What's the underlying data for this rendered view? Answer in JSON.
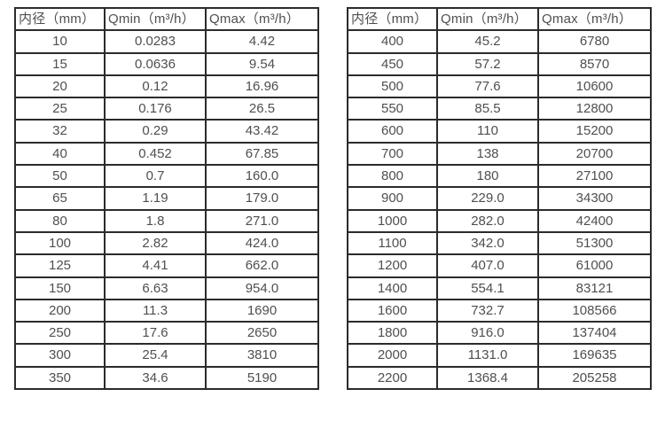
{
  "colors": {
    "background": "#ffffff",
    "border": "#2b2b2b",
    "text": "#4f4f4f"
  },
  "tables": [
    {
      "headers": [
        "内径（mm）",
        "Qmin（m³/h）",
        "Qmax（m³/h）"
      ],
      "rows": [
        [
          "10",
          "0.0283",
          "4.42"
        ],
        [
          "15",
          "0.0636",
          "9.54"
        ],
        [
          "20",
          "0.12",
          "16.96"
        ],
        [
          "25",
          "0.176",
          "26.5"
        ],
        [
          "32",
          "0.29",
          "43.42"
        ],
        [
          "40",
          "0.452",
          "67.85"
        ],
        [
          "50",
          "0.7",
          "160.0"
        ],
        [
          "65",
          "1.19",
          "179.0"
        ],
        [
          "80",
          "1.8",
          "271.0"
        ],
        [
          "100",
          "2.82",
          "424.0"
        ],
        [
          "125",
          "4.41",
          "662.0"
        ],
        [
          "150",
          "6.63",
          "954.0"
        ],
        [
          "200",
          "11.3",
          "1690"
        ],
        [
          "250",
          "17.6",
          "2650"
        ],
        [
          "300",
          "25.4",
          "3810"
        ],
        [
          "350",
          "34.6",
          "5190"
        ]
      ]
    },
    {
      "headers": [
        "内径（mm）",
        "Qmin（m³/h）",
        "Qmax（m³/h）"
      ],
      "rows": [
        [
          "400",
          "45.2",
          "6780"
        ],
        [
          "450",
          "57.2",
          "8570"
        ],
        [
          "500",
          "77.6",
          "10600"
        ],
        [
          "550",
          "85.5",
          "12800"
        ],
        [
          "600",
          "110",
          "15200"
        ],
        [
          "700",
          "138",
          "20700"
        ],
        [
          "800",
          "180",
          "27100"
        ],
        [
          "900",
          "229.0",
          "34300"
        ],
        [
          "1000",
          "282.0",
          "42400"
        ],
        [
          "1100",
          "342.0",
          "51300"
        ],
        [
          "1200",
          "407.0",
          "61000"
        ],
        [
          "1400",
          "554.1",
          "83121"
        ],
        [
          "1600",
          "732.7",
          "108566"
        ],
        [
          "1800",
          "916.0",
          "137404"
        ],
        [
          "2000",
          "1131.0",
          "169635"
        ],
        [
          "2200",
          "1368.4",
          "205258"
        ]
      ]
    }
  ]
}
